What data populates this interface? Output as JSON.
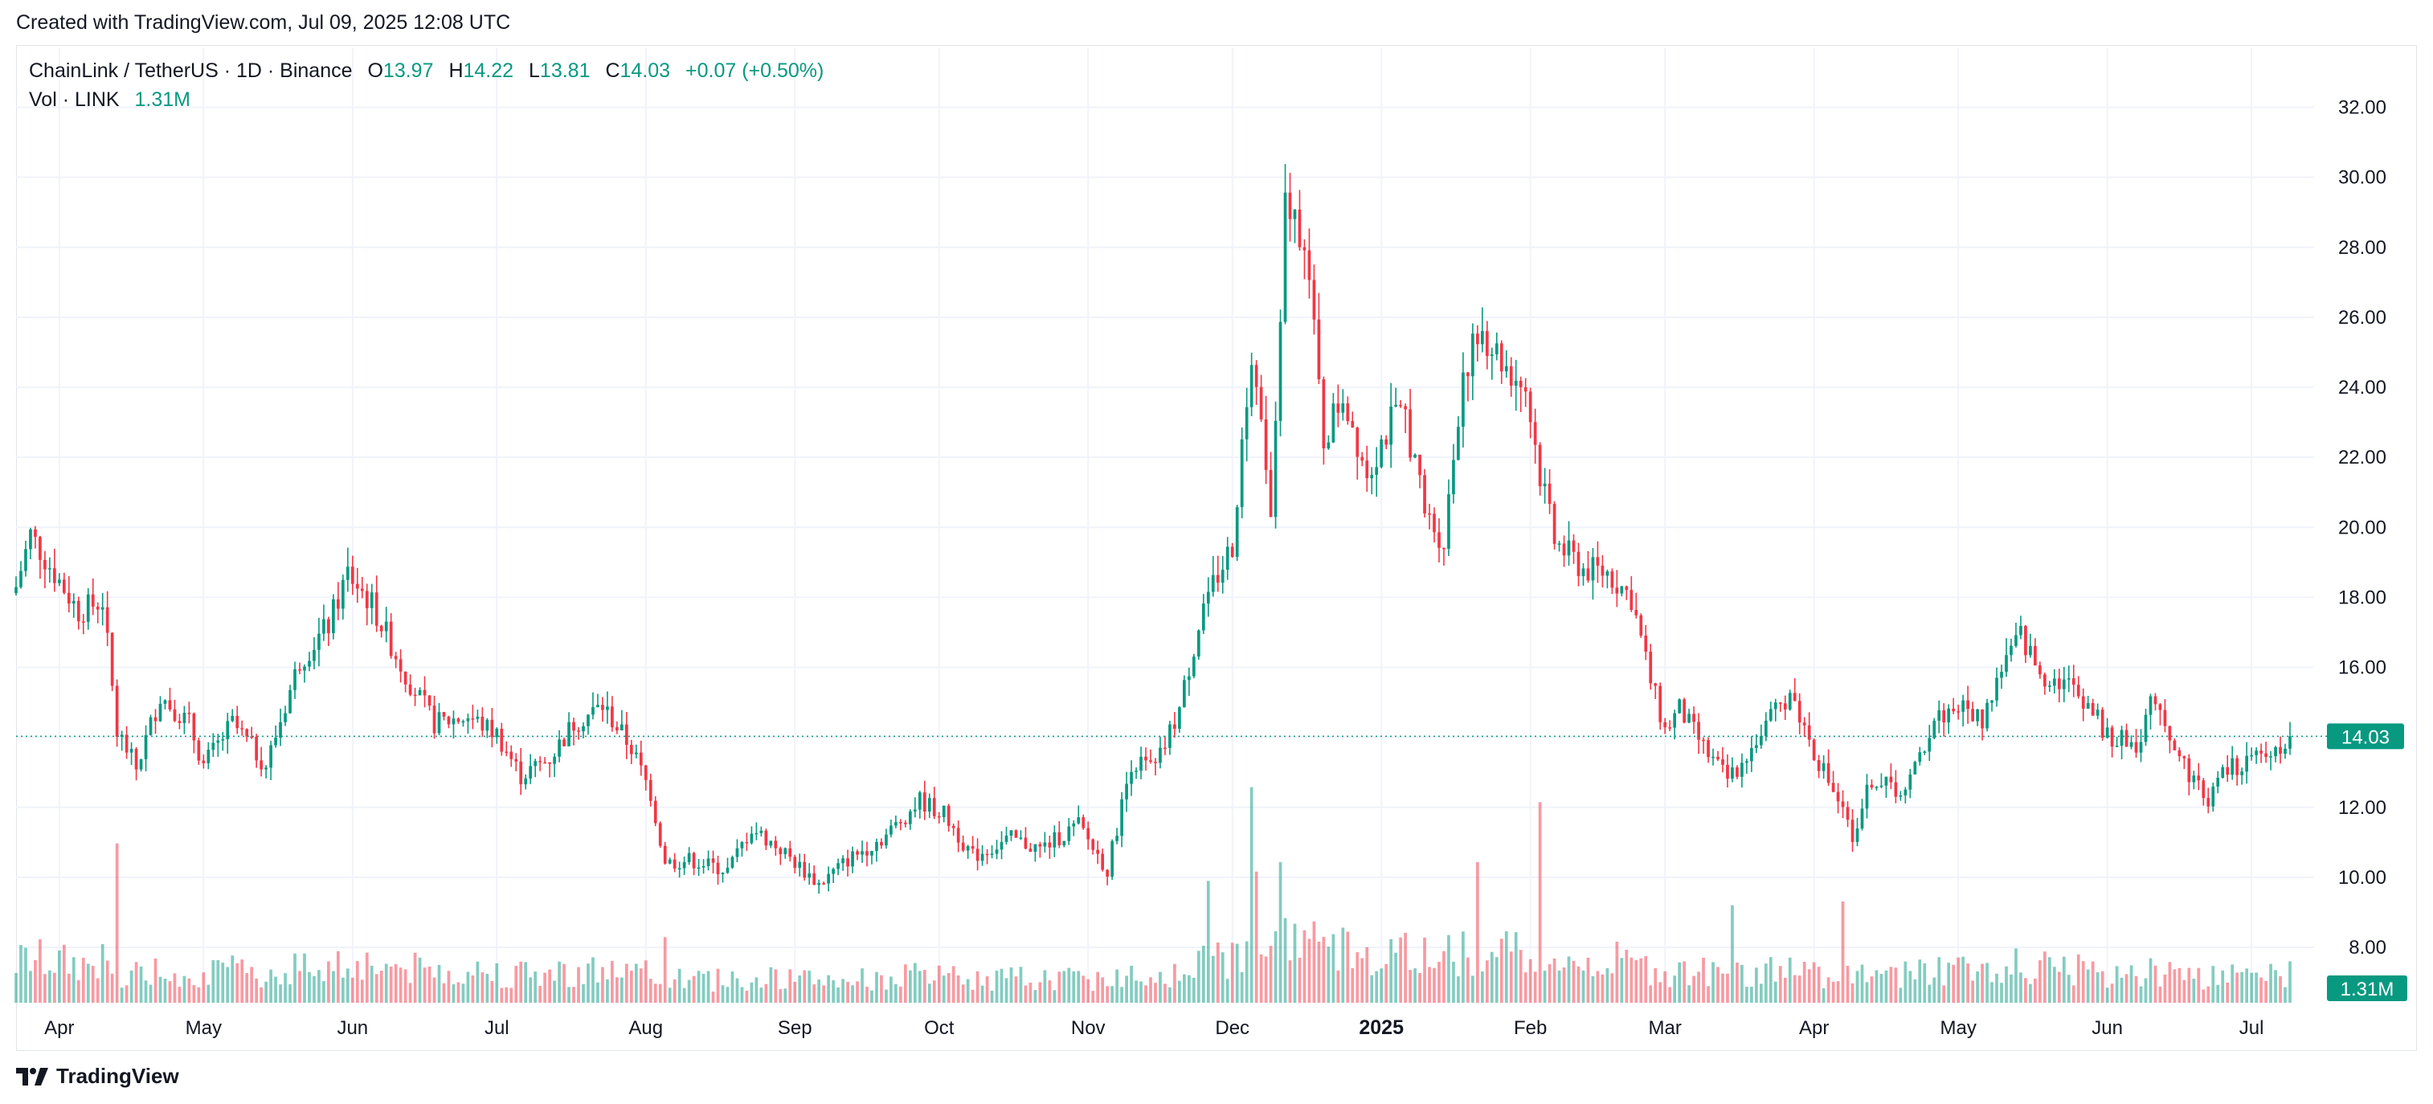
{
  "header": {
    "created_text": "Created with TradingView.com, Jul 09, 2025 12:08 UTC"
  },
  "legend": {
    "symbol": "ChainLink / TetherUS · 1D · Binance",
    "o_label": "O",
    "o_value": "13.97",
    "h_label": "H",
    "h_value": "14.22",
    "l_label": "L",
    "l_value": "13.81",
    "c_label": "C",
    "c_value": "14.03",
    "change": "+0.07 (+0.50%)",
    "vol_label": "Vol · LINK",
    "vol_value": "1.31M"
  },
  "footer": {
    "brand": "TradingView"
  },
  "colors": {
    "up": "#089981",
    "down": "#f23645",
    "grid": "#f0f3fa",
    "text": "#131722"
  },
  "chart_data": {
    "type": "candlestick",
    "title": "ChainLink / TetherUS · 1D · Binance",
    "y_axis_position": "right",
    "ylim": [
      6.6,
      33.0
    ],
    "y_ticks": [
      "8.00",
      "10.00",
      "12.00",
      "14.00",
      "16.00",
      "18.00",
      "20.00",
      "22.00",
      "24.00",
      "26.00",
      "28.00",
      "30.00",
      "32.00"
    ],
    "x_labels": [
      {
        "label": "Apr",
        "date": "2024-04-01"
      },
      {
        "label": "May",
        "date": "2024-05-01"
      },
      {
        "label": "Jun",
        "date": "2024-06-01"
      },
      {
        "label": "Jul",
        "date": "2024-07-01"
      },
      {
        "label": "Aug",
        "date": "2024-08-01"
      },
      {
        "label": "Sep",
        "date": "2024-09-01"
      },
      {
        "label": "Oct",
        "date": "2024-10-01"
      },
      {
        "label": "Nov",
        "date": "2024-11-01"
      },
      {
        "label": "Dec",
        "date": "2024-12-01"
      },
      {
        "label": "2025",
        "date": "2025-01-01",
        "bold": true
      },
      {
        "label": "Feb",
        "date": "2025-02-01"
      },
      {
        "label": "Mar",
        "date": "2025-03-01"
      },
      {
        "label": "Apr",
        "date": "2025-04-01"
      },
      {
        "label": "May",
        "date": "2025-05-01"
      },
      {
        "label": "Jun",
        "date": "2025-06-01"
      },
      {
        "label": "Jul",
        "date": "2025-07-01"
      }
    ],
    "x_start": "2024-03-23",
    "x_end": "2025-07-09",
    "grid": true,
    "last_price": {
      "value": 14.03,
      "label": "14.03"
    },
    "last_volume_label": "1.31M",
    "price_anchors": [
      [
        "2024-03-23",
        18.3
      ],
      [
        "2024-03-26",
        19.8
      ],
      [
        "2024-03-30",
        18.9
      ],
      [
        "2024-04-05",
        17.6
      ],
      [
        "2024-04-10",
        17.9
      ],
      [
        "2024-04-13",
        14.2
      ],
      [
        "2024-04-17",
        13.1
      ],
      [
        "2024-04-22",
        15.2
      ],
      [
        "2024-04-28",
        14.4
      ],
      [
        "2024-05-01",
        13.2
      ],
      [
        "2024-05-07",
        14.4
      ],
      [
        "2024-05-14",
        13.2
      ],
      [
        "2024-05-21",
        16.2
      ],
      [
        "2024-05-27",
        17.2
      ],
      [
        "2024-05-31",
        18.7
      ],
      [
        "2024-06-05",
        17.8
      ],
      [
        "2024-06-12",
        15.8
      ],
      [
        "2024-06-18",
        14.4
      ],
      [
        "2024-06-25",
        14.6
      ],
      [
        "2024-07-01",
        14.1
      ],
      [
        "2024-07-06",
        12.9
      ],
      [
        "2024-07-12",
        13.4
      ],
      [
        "2024-07-17",
        14.4
      ],
      [
        "2024-07-23",
        14.9
      ],
      [
        "2024-07-29",
        13.7
      ],
      [
        "2024-08-02",
        12.4
      ],
      [
        "2024-08-05",
        10.4
      ],
      [
        "2024-08-10",
        10.5
      ],
      [
        "2024-08-18",
        10.2
      ],
      [
        "2024-08-23",
        11.4
      ],
      [
        "2024-08-29",
        10.8
      ],
      [
        "2024-09-06",
        9.8
      ],
      [
        "2024-09-12",
        10.5
      ],
      [
        "2024-09-20",
        11.2
      ],
      [
        "2024-09-27",
        12.2
      ],
      [
        "2024-10-02",
        11.8
      ],
      [
        "2024-10-08",
        10.6
      ],
      [
        "2024-10-16",
        11.1
      ],
      [
        "2024-10-22",
        10.8
      ],
      [
        "2024-10-30",
        11.5
      ],
      [
        "2024-11-05",
        10.2
      ],
      [
        "2024-11-10",
        13.3
      ],
      [
        "2024-11-15",
        13.1
      ],
      [
        "2024-11-20",
        14.8
      ],
      [
        "2024-11-25",
        17.8
      ],
      [
        "2024-12-01",
        19.5
      ],
      [
        "2024-12-05",
        25.2
      ],
      [
        "2024-12-09",
        20.1
      ],
      [
        "2024-12-12",
        29.2
      ],
      [
        "2024-12-16",
        28.4
      ],
      [
        "2024-12-20",
        22.5
      ],
      [
        "2024-12-24",
        23.8
      ],
      [
        "2024-12-29",
        21.6
      ],
      [
        "2025-01-03",
        23.0
      ],
      [
        "2025-01-06",
        23.2
      ],
      [
        "2025-01-10",
        20.4
      ],
      [
        "2025-01-14",
        19.6
      ],
      [
        "2025-01-18",
        24.5
      ],
      [
        "2025-01-22",
        25.6
      ],
      [
        "2025-01-27",
        24.6
      ],
      [
        "2025-01-31",
        24.0
      ],
      [
        "2025-02-03",
        21.5
      ],
      [
        "2025-02-06",
        19.6
      ],
      [
        "2025-02-12",
        18.8
      ],
      [
        "2025-02-17",
        18.7
      ],
      [
        "2025-02-22",
        18.0
      ],
      [
        "2025-02-26",
        15.6
      ],
      [
        "2025-03-01",
        14.2
      ],
      [
        "2025-03-04",
        14.8
      ],
      [
        "2025-03-10",
        13.5
      ],
      [
        "2025-03-14",
        12.8
      ],
      [
        "2025-03-20",
        13.9
      ],
      [
        "2025-03-27",
        15.3
      ],
      [
        "2025-04-01",
        13.6
      ],
      [
        "2025-04-06",
        12.2
      ],
      [
        "2025-04-09",
        11.2
      ],
      [
        "2025-04-13",
        12.8
      ],
      [
        "2025-04-20",
        12.4
      ],
      [
        "2025-04-26",
        14.5
      ],
      [
        "2025-05-01",
        14.9
      ],
      [
        "2025-05-06",
        14.5
      ],
      [
        "2025-05-10",
        16.0
      ],
      [
        "2025-05-14",
        16.9
      ],
      [
        "2025-05-18",
        15.8
      ],
      [
        "2025-05-23",
        15.6
      ],
      [
        "2025-05-28",
        15.0
      ],
      [
        "2025-06-01",
        14.0
      ],
      [
        "2025-06-07",
        13.8
      ],
      [
        "2025-06-11",
        15.2
      ],
      [
        "2025-06-16",
        13.4
      ],
      [
        "2025-06-22",
        12.2
      ],
      [
        "2025-06-25",
        13.0
      ],
      [
        "2025-06-30",
        13.3
      ],
      [
        "2025-07-04",
        13.4
      ],
      [
        "2025-07-09",
        14.03
      ]
    ],
    "volume_spikes": [
      [
        "2024-04-13",
        8.5
      ],
      [
        "2024-08-05",
        3.5
      ],
      [
        "2024-11-26",
        6.5
      ],
      [
        "2024-12-05",
        11.5
      ],
      [
        "2024-12-06",
        7.0
      ],
      [
        "2024-12-11",
        7.5
      ],
      [
        "2025-01-21",
        7.5
      ],
      [
        "2025-02-03",
        10.7
      ],
      [
        "2025-03-15",
        5.2
      ],
      [
        "2025-04-07",
        5.4
      ]
    ]
  }
}
